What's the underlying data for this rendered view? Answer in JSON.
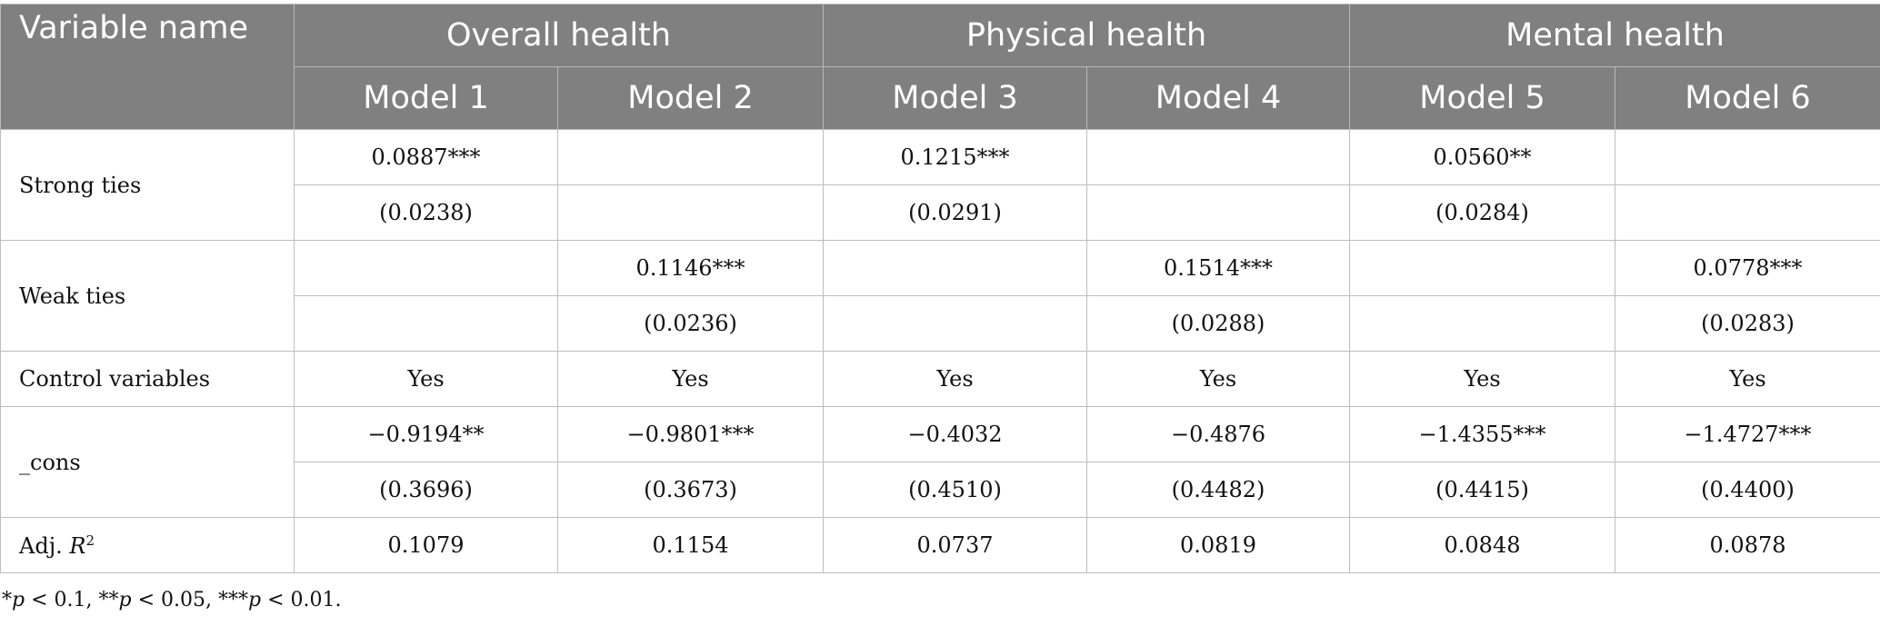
{
  "header": {
    "variable_name": "Variable name",
    "groups": [
      "Overall health",
      "Physical health",
      "Mental health"
    ],
    "models": [
      "Model 1",
      "Model 2",
      "Model 3",
      "Model 4",
      "Model 5",
      "Model 6"
    ]
  },
  "rows": {
    "strong_ties": {
      "label": "Strong ties",
      "coef": [
        "0.0887***",
        "",
        "0.1215***",
        "",
        "0.0560**",
        ""
      ],
      "se": [
        "(0.0238)",
        "",
        "(0.0291)",
        "",
        "(0.0284)",
        ""
      ]
    },
    "weak_ties": {
      "label": "Weak ties",
      "coef": [
        "",
        "0.1146***",
        "",
        "0.1514***",
        "",
        "0.0778***"
      ],
      "se": [
        "",
        "(0.0236)",
        "",
        "(0.0288)",
        "",
        "(0.0283)"
      ]
    },
    "controls": {
      "label": "Control variables",
      "values": [
        "Yes",
        "Yes",
        "Yes",
        "Yes",
        "Yes",
        "Yes"
      ]
    },
    "cons": {
      "label": "_cons",
      "coef": [
        "−0.9194**",
        "−0.9801***",
        "−0.4032",
        "−0.4876",
        "−1.4355***",
        "−1.4727***"
      ],
      "se": [
        "(0.3696)",
        "(0.3673)",
        "(0.4510)",
        "(0.4482)",
        "(0.4415)",
        "(0.4400)"
      ]
    },
    "adj_r2": {
      "label_prefix": "Adj. ",
      "label_var": "R",
      "label_sup": "2",
      "values": [
        "0.1079",
        "0.1154",
        "0.0737",
        "0.0819",
        "0.0848",
        "0.0878"
      ]
    }
  },
  "note": {
    "s1": "*",
    "p1": "p",
    "t1": " < 0.1, **",
    "p2": "p",
    "t2": " < 0.05, ***",
    "p3": "p",
    "t3": " < 0.01."
  },
  "colors": {
    "header_bg": "#808080",
    "header_text": "#ffffff",
    "border": "#bdbdbd"
  }
}
